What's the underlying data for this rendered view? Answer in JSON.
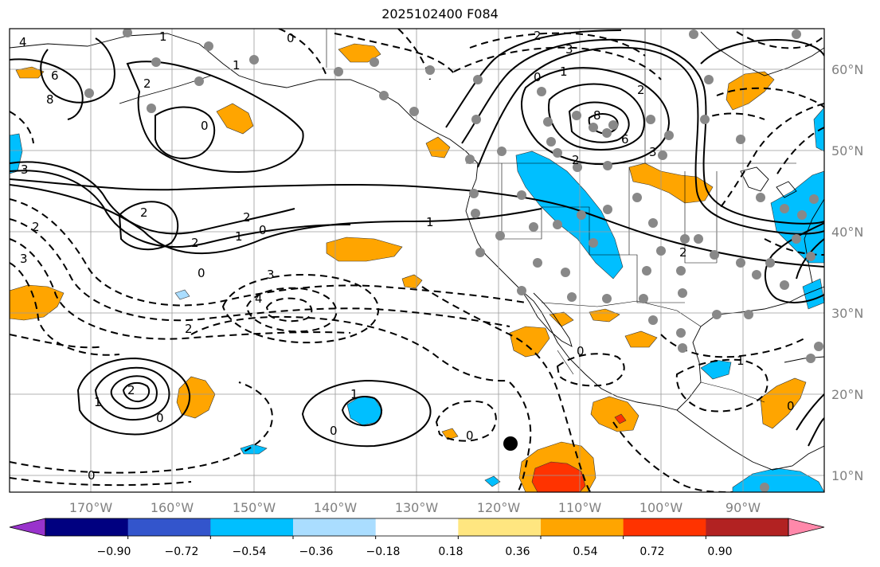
{
  "title": "2025102400 F084",
  "lon_labels": [
    "170°W",
    "160°W",
    "150°W",
    "140°W",
    "130°W",
    "120°W",
    "110°W",
    "100°W",
    "90°W"
  ],
  "lat_labels": [
    "60°N",
    "50°N",
    "40°N",
    "30°N",
    "20°N",
    "10°N"
  ],
  "colorbar": {
    "ticks": [
      "−0.90",
      "−0.72",
      "−0.54",
      "−0.36",
      "−0.18",
      "0.18",
      "0.36",
      "0.54",
      "0.72",
      "0.90"
    ],
    "colors": [
      "#9933cc",
      "#000080",
      "#3355cc",
      "#00bfff",
      "#aaddff",
      "#ffffff",
      "#ffe680",
      "#ffa500",
      "#ff3300",
      "#b22222",
      "#ff88aa"
    ]
  },
  "contour_labels": [
    "4",
    "6",
    "8",
    "2",
    "0",
    "1",
    "3",
    "2",
    "1",
    "0",
    "2",
    "3",
    "2",
    "1",
    "0",
    "0",
    "1",
    "3",
    "6",
    "8",
    "2",
    "3",
    "2",
    "2",
    "0",
    "1",
    "2",
    "0",
    "0",
    "1",
    "1",
    "0",
    "2",
    "0",
    "3",
    "2",
    "0",
    "4",
    "1",
    "0",
    "2"
  ],
  "marker_color": "#000000",
  "station_color": "#888888"
}
